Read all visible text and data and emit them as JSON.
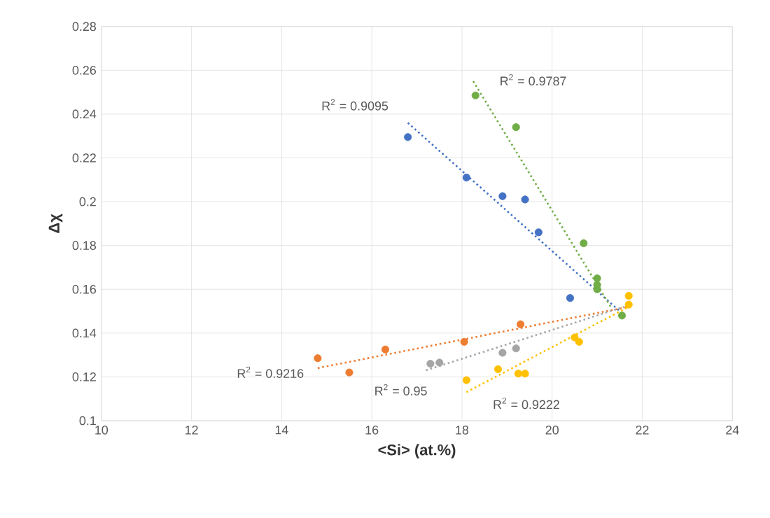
{
  "chart_data": {
    "type": "scatter",
    "xlabel": "<Si> (at.%)",
    "ylabel": "Δχ",
    "xlim": [
      10,
      24
    ],
    "ylim": [
      0.1,
      0.28
    ],
    "xticks": [
      10,
      12,
      14,
      16,
      18,
      20,
      22,
      24
    ],
    "yticks": [
      {
        "value": 0.1,
        "label": "0.1"
      },
      {
        "value": 0.12,
        "label": "0.12"
      },
      {
        "value": 0.14,
        "label": "0.14"
      },
      {
        "value": 0.16,
        "label": "0.16"
      },
      {
        "value": 0.18,
        "label": "0.18"
      },
      {
        "value": 0.2,
        "label": "0.2"
      },
      {
        "value": 0.22,
        "label": "0.22"
      },
      {
        "value": 0.24,
        "label": "0.24"
      },
      {
        "value": 0.26,
        "label": "0.26"
      },
      {
        "value": 0.28,
        "label": "0.28"
      }
    ],
    "grid": true,
    "marker": "circle",
    "series": [
      {
        "color": "#4472c4",
        "x": [
          16.8,
          18.1,
          18.9,
          19.4,
          19.7,
          20.4
        ],
        "values": [
          0.2295,
          0.211,
          0.2025,
          0.201,
          0.186,
          0.156
        ]
      },
      {
        "color": "#70ad47",
        "x": [
          18.3,
          19.2,
          20.7,
          21.0,
          21.0,
          21.0,
          21.55
        ],
        "values": [
          0.2485,
          0.234,
          0.181,
          0.165,
          0.162,
          0.16,
          0.148
        ]
      },
      {
        "color": "#ed7d31",
        "x": [
          14.8,
          15.5,
          16.3,
          18.05,
          19.3
        ],
        "values": [
          0.1285,
          0.122,
          0.1325,
          0.136,
          0.144
        ]
      },
      {
        "color": "#a5a5a5",
        "x": [
          17.3,
          17.5,
          18.9,
          19.2
        ],
        "values": [
          0.126,
          0.1265,
          0.131,
          0.133
        ]
      },
      {
        "color": "#ffc000",
        "x": [
          18.1,
          18.8,
          19.25,
          19.4,
          20.5,
          20.6,
          21.7,
          21.7
        ],
        "values": [
          0.1185,
          0.1235,
          0.1215,
          0.1215,
          0.138,
          0.136,
          0.157,
          0.153
        ]
      },
      {
        "type": "line",
        "line_style": "dotted",
        "marker": "none",
        "color": "#4472c4",
        "x": [
          16.8,
          21.5
        ],
        "values": [
          0.236,
          0.15
        ]
      },
      {
        "type": "line",
        "line_style": "dotted",
        "marker": "none",
        "color": "#70ad47",
        "x": [
          18.25,
          21.3
        ],
        "values": [
          0.255,
          0.152
        ]
      },
      {
        "type": "line",
        "line_style": "dotted",
        "marker": "none",
        "color": "#ed7d31",
        "x": [
          14.8,
          21.7
        ],
        "values": [
          0.124,
          0.152
        ]
      },
      {
        "type": "line",
        "line_style": "dotted",
        "marker": "none",
        "color": "#a5a5a5",
        "x": [
          17.2,
          21.6
        ],
        "values": [
          0.123,
          0.152
        ]
      },
      {
        "type": "line",
        "line_style": "dotted",
        "marker": "none",
        "color": "#ffc000",
        "x": [
          18.1,
          21.7
        ],
        "values": [
          0.113,
          0.152
        ]
      }
    ],
    "annotations": [
      "R$^{2}$ = 0.9095",
      "R$^{2}$ = 0.9787",
      "R$^{2}$ = 0.9216",
      "R$^{2}$ = 0.95",
      "R$^{2}$ = 0.9222"
    ]
  }
}
